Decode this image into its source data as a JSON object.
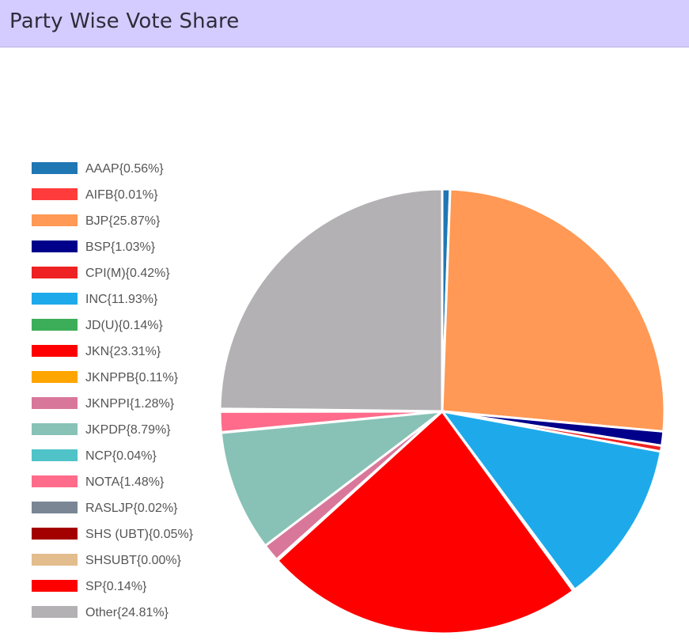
{
  "header": {
    "title": "Party Wise Vote Share"
  },
  "chart_data": {
    "type": "pie",
    "title": "Party Wise Vote Share",
    "legend_position": "left",
    "slices": [
      {
        "label": "AAAP",
        "legend": "AAAP{0.56%}",
        "value": 0.56,
        "color": "#1f77b4"
      },
      {
        "label": "AIFB",
        "legend": "AIFB{0.01%}",
        "value": 0.01,
        "color": "#ff3b3b"
      },
      {
        "label": "BJP",
        "legend": "BJP{25.87%}",
        "value": 25.87,
        "color": "#ff9955"
      },
      {
        "label": "BSP",
        "legend": "BSP{1.03%}",
        "value": 1.03,
        "color": "#00008b"
      },
      {
        "label": "CPI(M)",
        "legend": "CPI(M){0.42%}",
        "value": 0.42,
        "color": "#ee2222"
      },
      {
        "label": "INC",
        "legend": "INC{11.93%}",
        "value": 11.93,
        "color": "#1eaaea"
      },
      {
        "label": "JD(U)",
        "legend": "JD(U){0.14%}",
        "value": 0.14,
        "color": "#3cae5a"
      },
      {
        "label": "JKN",
        "legend": "JKN{23.31%}",
        "value": 23.31,
        "color": "#ff0000"
      },
      {
        "label": "JKNPPB",
        "legend": "JKNPPB{0.11%}",
        "value": 0.11,
        "color": "#ffa500"
      },
      {
        "label": "JKNPPI",
        "legend": "JKNPPI{1.28%}",
        "value": 1.28,
        "color": "#d9779a"
      },
      {
        "label": "JKPDP",
        "legend": "JKPDP{8.79%}",
        "value": 8.79,
        "color": "#88c2b6"
      },
      {
        "label": "NCP",
        "legend": "NCP{0.04%}",
        "value": 0.04,
        "color": "#4fc3c8"
      },
      {
        "label": "NOTA",
        "legend": "NOTA{1.48%}",
        "value": 1.48,
        "color": "#ff6b8a"
      },
      {
        "label": "RASLJP",
        "legend": "RASLJP{0.02%}",
        "value": 0.02,
        "color": "#7a8694"
      },
      {
        "label": "SHS (UBT)",
        "legend": "SHS (UBT){0.05%}",
        "value": 0.05,
        "color": "#a30000"
      },
      {
        "label": "SHSUBT",
        "legend": "SHSUBT{0.00%}",
        "value": 0.0,
        "color": "#e3bd8d"
      },
      {
        "label": "SP",
        "legend": "SP{0.14%}",
        "value": 0.14,
        "color": "#ff0000"
      },
      {
        "label": "Other",
        "legend": "Other{24.81%}",
        "value": 24.81,
        "color": "#b3b1b4"
      }
    ]
  }
}
